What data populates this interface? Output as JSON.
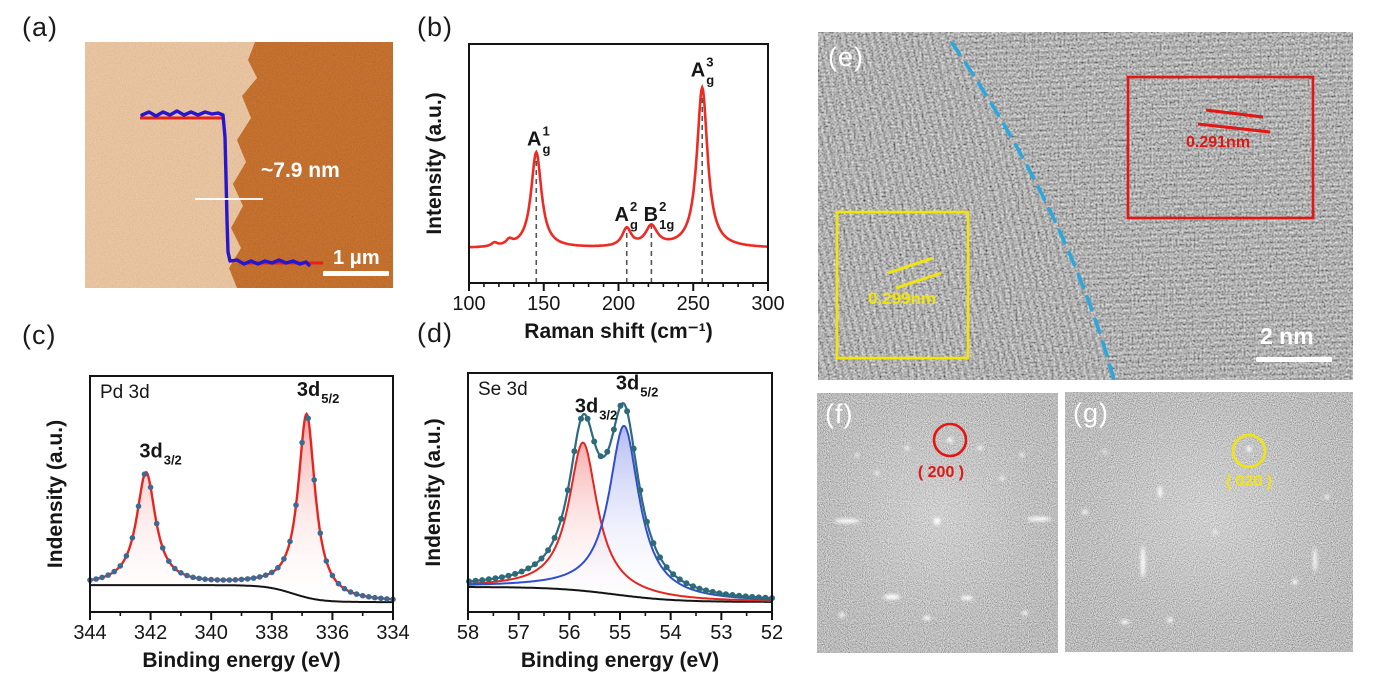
{
  "colors": {
    "annotation_red": "#e21613",
    "annotation_yellow": "#f2e50e",
    "tem_guide_blue": "#2aa7dc",
    "afm_profile_blue": "#2816cf",
    "afm_profile_red": "#e62117",
    "raman_line_red": "#ed2b24",
    "xps_fit_red": "#e52620",
    "xps_fit_blue": "#2f4fd0",
    "xps_data_teal": "#2f6a80",
    "afm_substrate_light": "#edc49c",
    "afm_flake_dark": "#c4651b"
  },
  "panels": {
    "a": {
      "label": "(a)",
      "height_annotation": "~7.9 nm",
      "scale_bar": "1 μm"
    },
    "b": {
      "label": "(b)"
    },
    "c": {
      "label": "(c)"
    },
    "d": {
      "label": "(d)"
    },
    "e": {
      "label": "(e)",
      "lattice_spacing_right": "0.291nm",
      "lattice_spacing_left": "0.299nm",
      "scale_bar": "2 nm"
    },
    "f": {
      "label": "(f)",
      "plane_annotation": "( 200 )"
    },
    "g": {
      "label": "(g)",
      "plane_annotation": "( 020 )"
    }
  },
  "chart_data": [
    {
      "id": "b_raman",
      "type": "line",
      "panel": "b",
      "xlabel": "Raman shift (cm⁻¹)",
      "ylabel": "Intensity (a.u.)",
      "xlim": [
        100,
        300
      ],
      "xticks": [
        100,
        150,
        200,
        250,
        300
      ],
      "minor_tick_step": 10,
      "ylim_note": "arbitrary units, no y ticks",
      "baseline": {
        "left": 0.145,
        "right": 0.145,
        "center": 200,
        "width": 1,
        "stroke": null
      },
      "series": [
        {
          "name": "Raman spectrum",
          "color": "#ed2b24",
          "stroke_width": 2.6,
          "peaks": [
            {
              "center": 117,
              "height": 0.015,
              "width": 2.5
            },
            {
              "center": 127,
              "height": 0.022,
              "width": 2.5
            },
            {
              "name": "A_g^1",
              "center": 145,
              "height": 0.4,
              "width": 4.2
            },
            {
              "name": "A_g^2",
              "center": 205.5,
              "height": 0.075,
              "width": 3.6
            },
            {
              "name": "B_1g^2",
              "center": 222,
              "height": 0.085,
              "width": 4.8
            },
            {
              "name": "A_g^3",
              "center": 256,
              "height": 0.67,
              "width": 4.3
            }
          ]
        }
      ],
      "guides": [
        145,
        205.5,
        222,
        256
      ],
      "peak_labels": [
        {
          "main": "A",
          "sup": "1",
          "sub": "g",
          "x": 148.5,
          "yf": 0.575
        },
        {
          "main": "A",
          "sup": "2",
          "sub": "g",
          "x": 207,
          "yf": 0.26
        },
        {
          "main": "B",
          "sup": "2",
          "sub": "1g",
          "x": 226.5,
          "yf": 0.26
        },
        {
          "main": "A",
          "sup": "3",
          "sub": "g",
          "x": 258,
          "yf": 0.865
        }
      ]
    },
    {
      "id": "c_pd3d",
      "type": "line",
      "panel": "c",
      "inside_label": "Pd 3d",
      "xlabel": "Binding energy (eV)",
      "ylabel": "Indensity (a.u.)",
      "xlim": [
        344,
        334
      ],
      "xticks": [
        344,
        342,
        340,
        338,
        336,
        334
      ],
      "minor_tick_step": 1,
      "baseline": {
        "left": 0.114,
        "right": 0.042,
        "center": 337.3,
        "width": 0.45,
        "stroke": "#141414"
      },
      "series": [
        {
          "name": "Pd 3d fit",
          "color": "#e52620",
          "stroke_width": 2.4,
          "fill_top": "rgba(238,80,78,0.50)",
          "fill_bottom": "rgba(255,247,247,0.04)",
          "peaks": [
            {
              "name": "3d3/2",
              "center": 342.15,
              "height": 0.475,
              "width": 0.38
            },
            {
              "name": "3d5/2",
              "center": 336.85,
              "height": 0.775,
              "width": 0.34
            }
          ],
          "markers": {
            "color": "#3b6b94",
            "step": 0.2,
            "r": 2.8
          }
        }
      ],
      "peak_labels": [
        {
          "main": "3d",
          "sub": "3/2",
          "x": 341.6,
          "yf": 0.655
        },
        {
          "main": "3d",
          "sub": "5/2",
          "x": 336.4,
          "yf": 0.915
        }
      ]
    },
    {
      "id": "d_se3d",
      "type": "line",
      "panel": "d",
      "inside_label": "Se 3d",
      "xlabel": "Binding energy (eV)",
      "ylabel": "Indensity (a.u.)",
      "xlim": [
        58,
        52
      ],
      "xticks": [
        58,
        57,
        56,
        55,
        54,
        53,
        52
      ],
      "minor_tick_step": 0.5,
      "baseline": {
        "left": 0.105,
        "right": 0.042,
        "center": 55.1,
        "width": 0.6,
        "stroke": "#141414"
      },
      "series": [
        {
          "name": "Se 3d3/2 component",
          "color": "#e52620",
          "stroke_width": 2,
          "fill_top": "rgba(238,80,78,0.46)",
          "fill_bottom": "rgba(255,247,247,0.04)",
          "peaks": [
            {
              "name": "3d3/2",
              "center": 55.73,
              "height": 0.62,
              "width": 0.34
            }
          ]
        },
        {
          "name": "Se 3d5/2 component",
          "color": "#2f4fd0",
          "stroke_width": 2,
          "fill_top": "rgba(82,100,222,0.44)",
          "fill_bottom": "rgba(245,247,255,0.04)",
          "peaks": [
            {
              "name": "3d5/2",
              "center": 54.92,
              "height": 0.71,
              "width": 0.36
            }
          ]
        },
        {
          "name": "Se 3d data",
          "color": "#2f6a80",
          "stroke_width": 2.2,
          "sum": true,
          "markers": {
            "color": "#2d6b7a",
            "step": 0.13,
            "r": 3
          }
        }
      ],
      "peak_labels": [
        {
          "main": "3d",
          "sub": "3/2",
          "x": 55.43,
          "yf": 0.835
        },
        {
          "main": "3d",
          "sub": "5/2",
          "x": 54.62,
          "yf": 0.93
        }
      ]
    }
  ]
}
